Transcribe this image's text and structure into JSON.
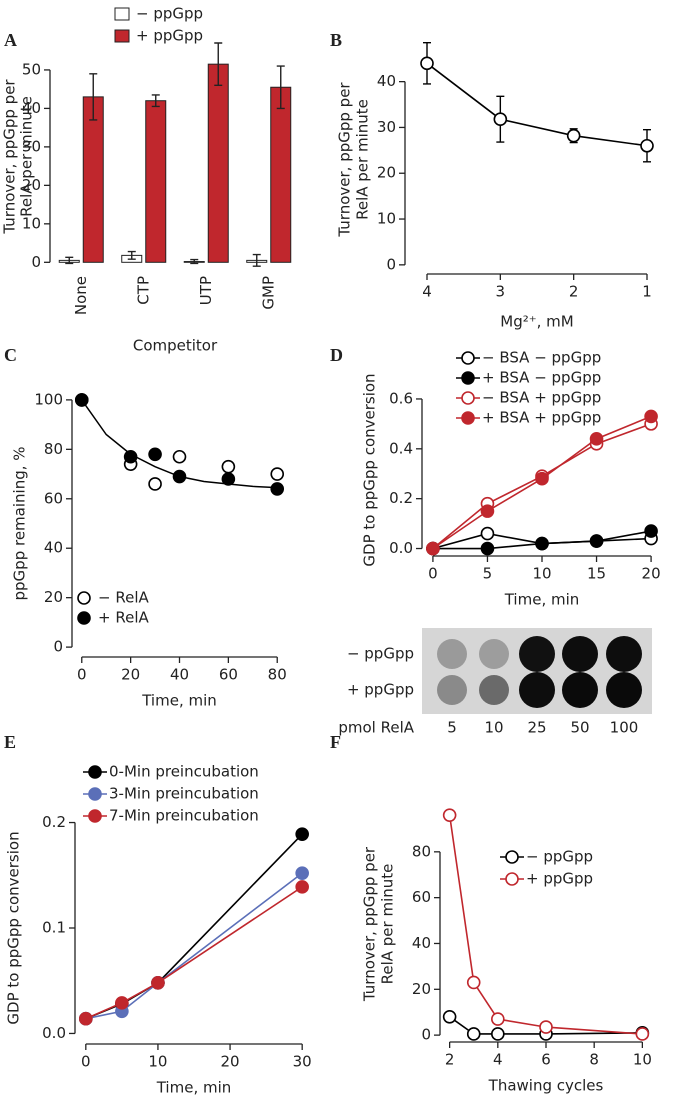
{
  "chart_data": [
    {
      "panel": "A",
      "type": "bar",
      "ylabel": [
        "Turnover, ppGpp per",
        "RelA per minute"
      ],
      "xlabel": "Competitor",
      "categories": [
        "None",
        "CTP",
        "UTP",
        "GMP"
      ],
      "series": [
        {
          "name": "− ppGpp",
          "color": "#ffffff",
          "values": [
            0.5,
            1.8,
            0.2,
            0.5
          ],
          "errors": [
            0.8,
            1.0,
            0.5,
            1.5
          ]
        },
        {
          "name": "+ ppGpp",
          "color": "#c0272d",
          "values": [
            43,
            42,
            51.5,
            45.5
          ],
          "errors": [
            6,
            1.5,
            5.5,
            5.5
          ]
        }
      ],
      "ylim": [
        -2,
        57
      ],
      "yticks": [
        0,
        10,
        20,
        30,
        40,
        50
      ],
      "legend": "top-left"
    },
    {
      "panel": "B",
      "type": "line",
      "ylabel": [
        "Turnover, ppGpp per",
        "RelA per minute"
      ],
      "xlabel": "Mg²⁺, mM",
      "x": [
        4,
        3,
        2,
        1
      ],
      "series": [
        {
          "color": "#000000",
          "filled": false,
          "values": [
            44,
            31.8,
            28.2,
            26
          ],
          "errors": [
            4.5,
            5,
            1.5,
            3.5
          ]
        }
      ],
      "xlim": [
        4.3,
        0.7
      ],
      "xticks": [
        4,
        3,
        2,
        1
      ],
      "ylim": [
        -2,
        48
      ],
      "yticks": [
        0,
        10,
        20,
        30,
        40
      ]
    },
    {
      "panel": "C",
      "type": "scatter",
      "ylabel": [
        "ppGpp remaining, %"
      ],
      "xlabel": "Time, min",
      "x": [
        0,
        20,
        30,
        40,
        60,
        80
      ],
      "series": [
        {
          "name": "− RelA",
          "color": "#000000",
          "filled": false,
          "values": [
            100,
            74,
            66,
            77,
            73,
            70
          ]
        },
        {
          "name": "+ RelA",
          "color": "#000000",
          "filled": true,
          "values": [
            100,
            77,
            78,
            69,
            68,
            64
          ]
        }
      ],
      "fit": {
        "x": [
          0,
          10,
          20,
          30,
          40,
          50,
          60,
          70,
          80
        ],
        "values": [
          100,
          86,
          78,
          73,
          69,
          67,
          66,
          65,
          64.5
        ]
      },
      "xlim": [
        -4,
        84
      ],
      "xticks": [
        0,
        20,
        40,
        60,
        80
      ],
      "ylim": [
        -4,
        104
      ],
      "yticks": [
        0,
        20,
        40,
        60,
        80,
        100
      ],
      "legend": "bottom-left"
    },
    {
      "panel": "D",
      "type": "line",
      "ylabel": [
        "GDP to ppGpp conversion"
      ],
      "xlabel": "Time, min",
      "x": [
        0,
        5,
        10,
        15,
        20
      ],
      "series": [
        {
          "name": "− BSA − ppGpp",
          "color": "#000000",
          "filled": false,
          "values": [
            0,
            0.06,
            0.02,
            0.03,
            0.04
          ]
        },
        {
          "name": "+ BSA − ppGpp",
          "color": "#000000",
          "filled": true,
          "values": [
            0,
            0,
            0.02,
            0.03,
            0.07
          ]
        },
        {
          "name": "− BSA + ppGpp",
          "color": "#c0272d",
          "filled": false,
          "values": [
            0,
            0.18,
            0.29,
            0.42,
            0.5
          ]
        },
        {
          "name": "+ BSA + ppGpp",
          "color": "#c0272d",
          "filled": true,
          "values": [
            0,
            0.15,
            0.28,
            0.44,
            0.53
          ]
        }
      ],
      "xlim": [
        -1,
        21
      ],
      "xticks": [
        0,
        5,
        10,
        15,
        20
      ],
      "ylim": [
        -0.03,
        0.66
      ],
      "yticks": [
        {
          "value": 0,
          "label": "0.0"
        },
        0.2,
        0.4,
        0.6
      ],
      "legend": "top-left"
    },
    {
      "type": "dot-blot",
      "rows": [
        "− ppGpp",
        "+ ppGpp"
      ],
      "column_label": "pmol RelA",
      "columns": [
        5,
        10,
        25,
        50,
        100
      ]
    },
    {
      "panel": "E",
      "type": "line",
      "ylabel": [
        "GDP to ppGpp conversion"
      ],
      "xlabel": "Time, min",
      "x": [
        0,
        5,
        10,
        30
      ],
      "series": [
        {
          "name": "0-Min preincubation",
          "color": "#000000",
          "filled": true,
          "values": [
            0.014,
            0.028,
            0.048,
            0.189
          ]
        },
        {
          "name": "3-Min preincubation",
          "color": "#5b6fb8",
          "filled": true,
          "values": [
            0.014,
            0.021,
            0.048,
            0.152
          ]
        },
        {
          "name": "7-Min preincubation",
          "color": "#c0272d",
          "filled": true,
          "values": [
            0.014,
            0.029,
            0.048,
            0.139
          ]
        }
      ],
      "xlim": [
        -1.5,
        31.5
      ],
      "xticks": [
        0,
        10,
        20,
        30
      ],
      "ylim": [
        -0.01,
        0.21
      ],
      "yticks": [
        {
          "value": 0,
          "label": "0.0"
        },
        0.1,
        0.2
      ],
      "legend": "top-left"
    },
    {
      "panel": "F",
      "type": "line",
      "ylabel": [
        "Turnover, ppGpp per",
        "RelA per minute"
      ],
      "xlabel": "Thawing cycles",
      "x": [
        2,
        3,
        4,
        6,
        10
      ],
      "series": [
        {
          "name": "− ppGpp",
          "color": "#000000",
          "filled": false,
          "values": [
            8,
            0.5,
            0.5,
            0.5,
            1
          ]
        },
        {
          "name": "+ ppGpp",
          "color": "#c0272d",
          "filled": false,
          "values": [
            96,
            23,
            7,
            3.5,
            0.5
          ]
        }
      ],
      "xlim": [
        1.6,
        10.4
      ],
      "xticks": [
        2,
        4,
        6,
        8,
        10
      ],
      "ylim": [
        -3,
        100
      ],
      "yticks": [
        0,
        20,
        40,
        60,
        80
      ],
      "legend": "top-right"
    }
  ]
}
